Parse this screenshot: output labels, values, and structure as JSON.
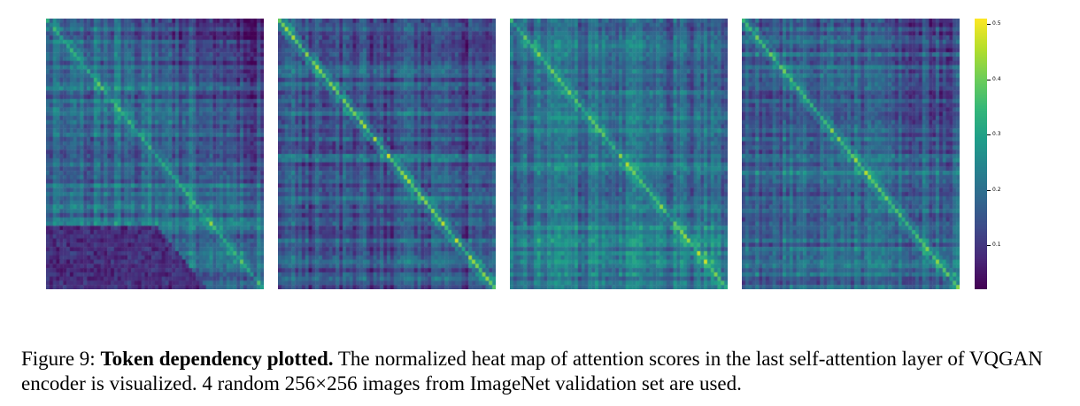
{
  "figure": {
    "label": "Figure 9:",
    "title": "Token dependency plotted.",
    "text": "The normalized heat map of attention scores in the last self-attention layer of VQGAN encoder is visualized. 4 random 256×256 images from ImageNet validation set are used."
  },
  "chart_data": {
    "type": "heatmap",
    "colormap": "viridis",
    "panels": 4,
    "colorbar": {
      "range": [
        0.02,
        0.51
      ],
      "ticks": [
        "0.1",
        "0.2",
        "0.3",
        "0.4",
        "0.5"
      ]
    }
  }
}
